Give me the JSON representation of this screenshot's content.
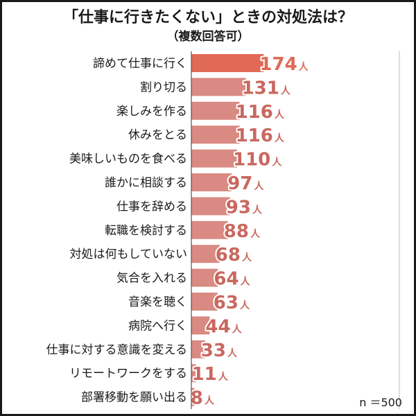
{
  "chart_data": {
    "type": "bar",
    "orientation": "horizontal",
    "title": "「仕事に行きたくない」ときの対処法は？",
    "subtitle": "（複数回答可）",
    "categories": [
      "諦めて仕事に行く",
      "割り切る",
      "楽しみを作る",
      "休みをとる",
      "美味しいものを食べる",
      "誰かに相談する",
      "仕事を辞める",
      "転職を検討する",
      "対処は何もしていない",
      "気合を入れる",
      "音楽を聴く",
      "病院へ行く",
      "仕事に対する意識を変える",
      "リモートワークをする",
      "部署移動を願い出る"
    ],
    "values": [
      174,
      131,
      116,
      116,
      110,
      97,
      93,
      88,
      68,
      64,
      63,
      44,
      33,
      11,
      8
    ],
    "unit": "人",
    "xlim": [
      0,
      500
    ],
    "grid": "vertical",
    "note": "n ＝500",
    "colors": {
      "highlight_bar": "#e06a55",
      "bar": "#d98a82",
      "highlight_value": "#e06a55",
      "value": "#c9685f",
      "axis": "#555555",
      "grid": "#bbbbbb"
    }
  }
}
